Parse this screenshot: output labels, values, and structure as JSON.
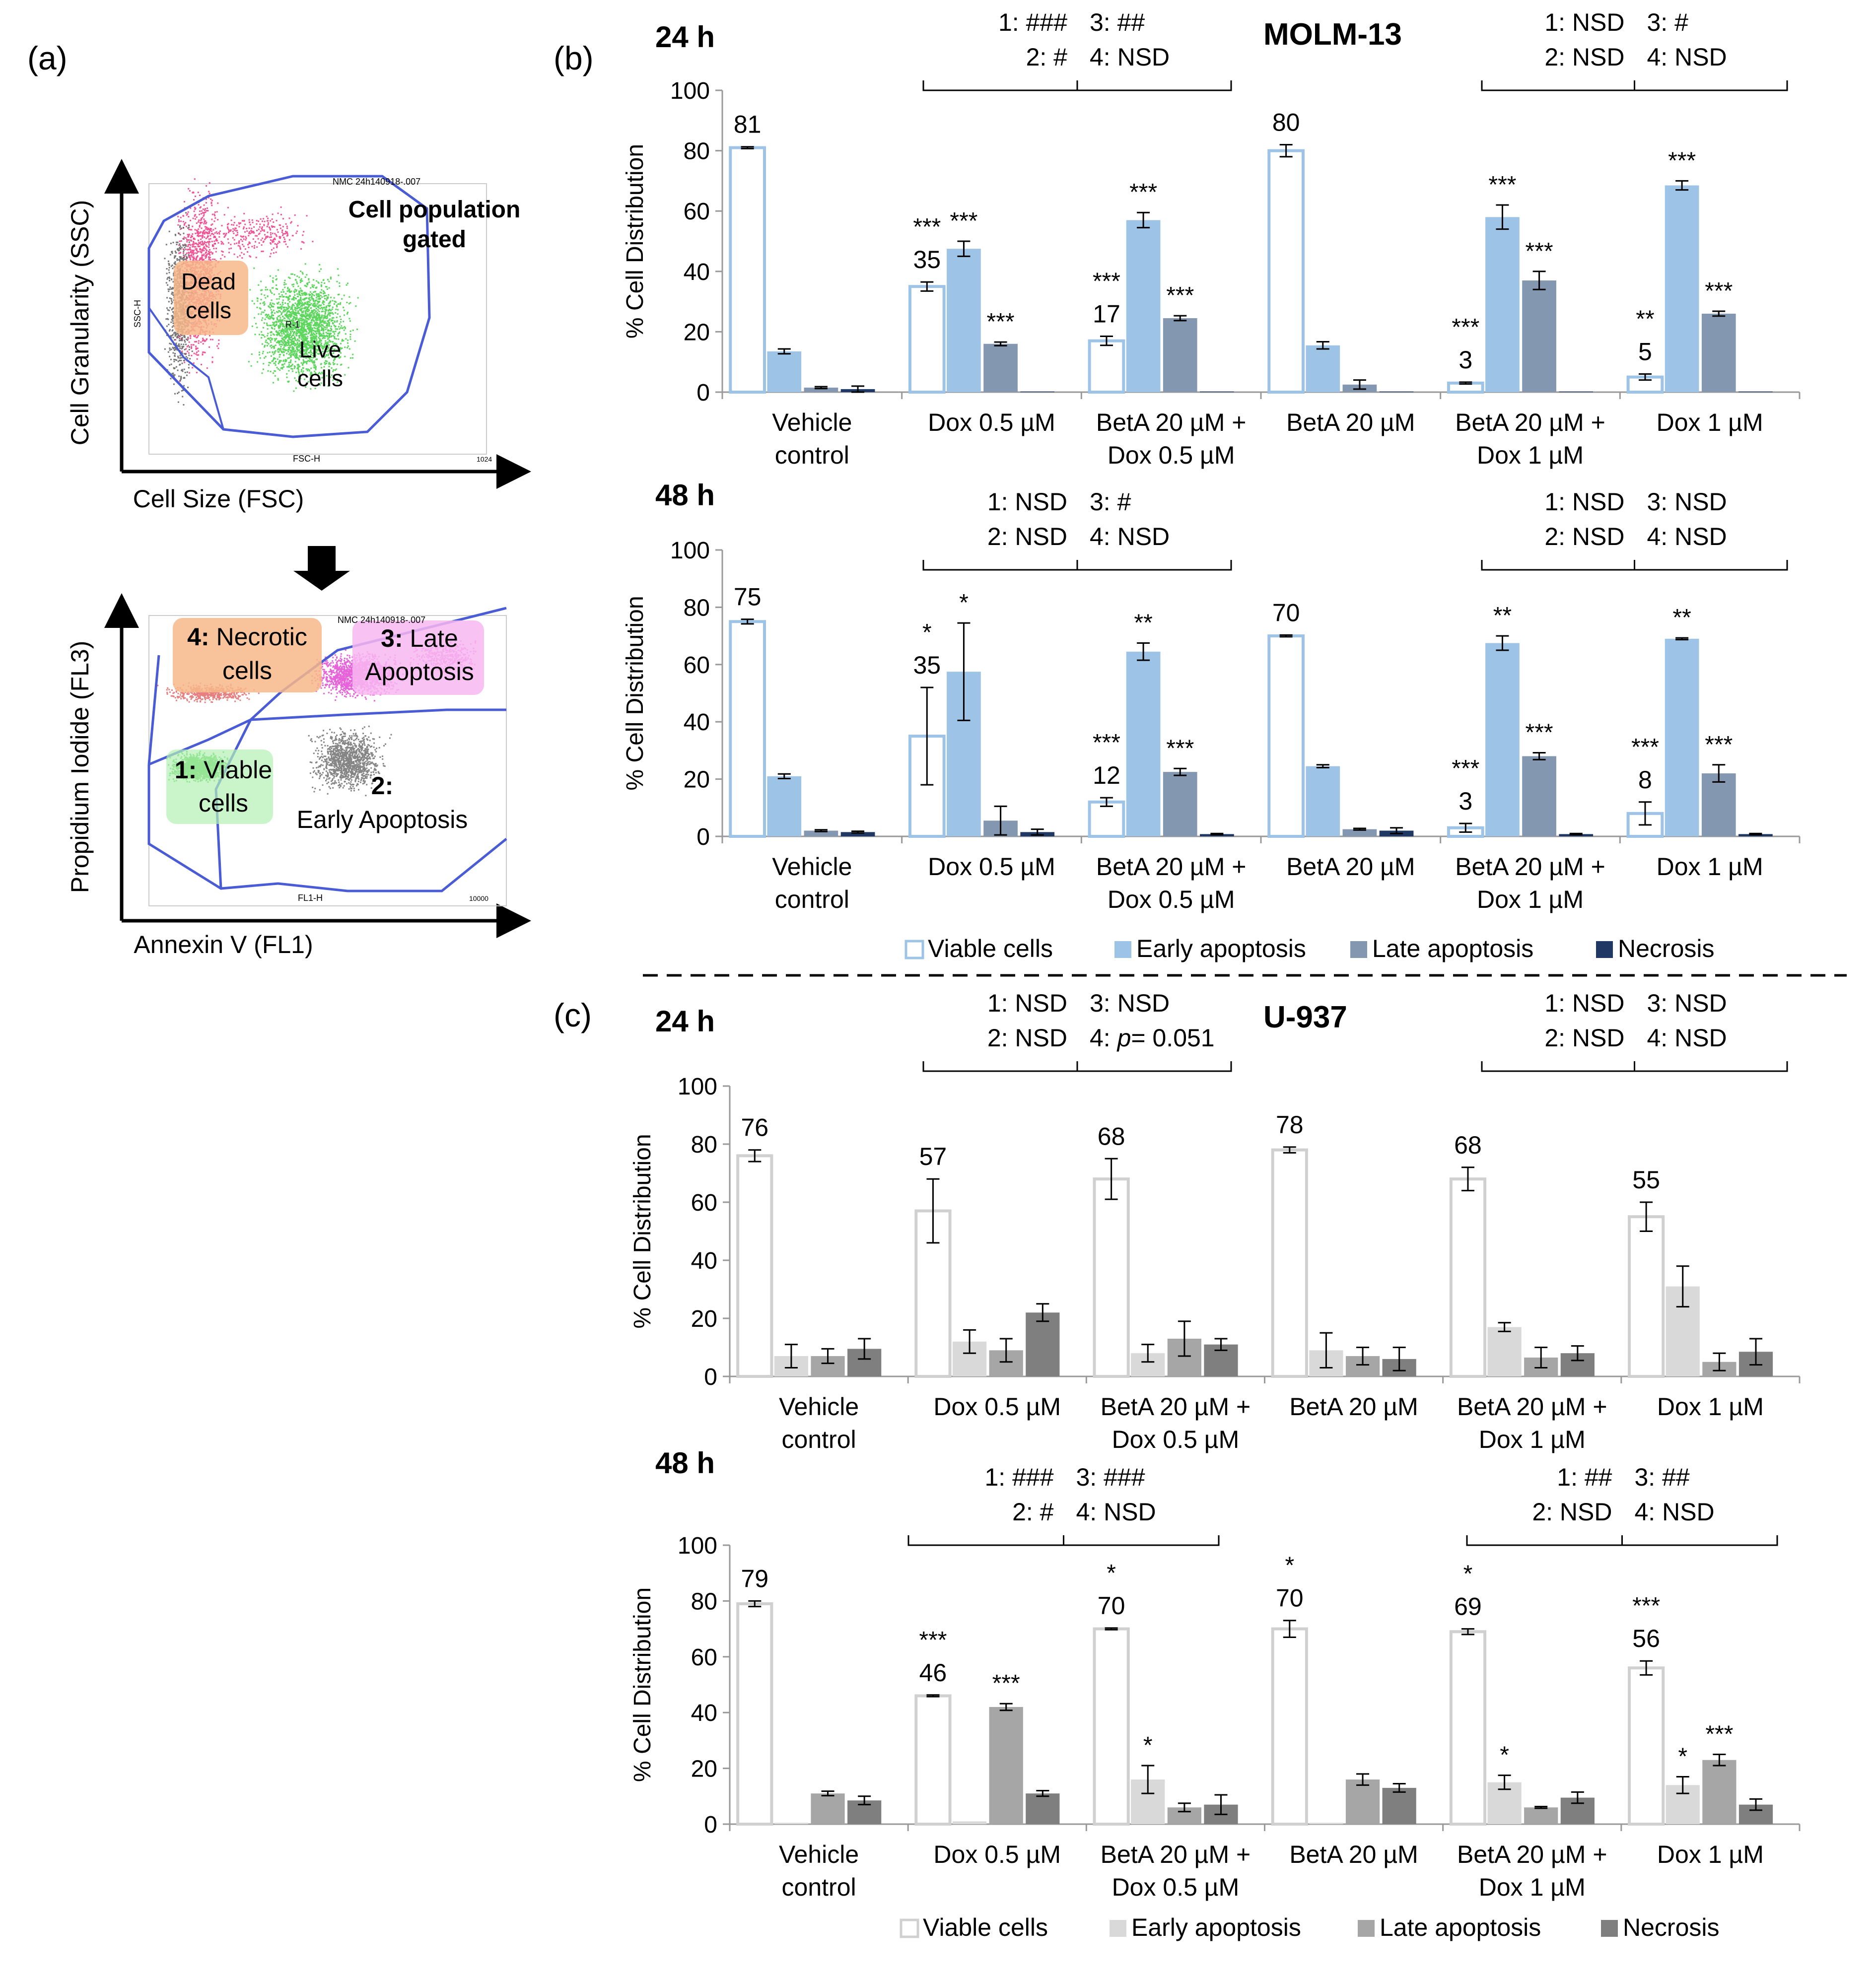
{
  "panel_a": {
    "label": "(a)",
    "scatter1": {
      "ylabel": "Cell Granularity (SSC)",
      "xlabel": "Cell Size (FSC)",
      "file": "NMC 24h140918-.007",
      "gated_label": "Cell population gated",
      "dead_label": "Dead cells",
      "live_label": "Live cells",
      "gate_name": "R-1",
      "inner_xaxis": "FSC-H",
      "inner_yaxis": "SSC-H",
      "xmax_tick": "1024"
    },
    "scatter2": {
      "ylabel": "Propidium Iodide (FL3)",
      "xlabel": "Annexin V (FL1)",
      "file": "NMC 24h140918-.007",
      "q4": "4: Necrotic cells",
      "q3": "3: Late Apoptosis",
      "q1": "1: Viable cells",
      "q2": "2: Early Apoptosis",
      "inner_xaxis": "FL1-H",
      "xmax_tick": "10000"
    }
  },
  "labels": {
    "b": "(b)",
    "c": "(c)",
    "molm": "MOLM-13",
    "u937": "U-937"
  },
  "colors": {
    "molm": [
      "#ffffff",
      "#9dc3e6",
      "#8497b0",
      "#203864"
    ],
    "molm_viable_border": "#9dc3e6",
    "u937": [
      "#ffffff",
      "#d9d9d9",
      "#a6a6a6",
      "#7f7f7f"
    ],
    "u937_viable_border": "#d0d0d0"
  },
  "legend_molm": [
    "Viable cells",
    "Early apoptosis",
    "Late apoptosis",
    "Necrosis"
  ],
  "legend_u937": [
    "Viable cells",
    "Early apoptosis",
    "Late apoptosis",
    "Necrosis"
  ],
  "chart_data": [
    {
      "type": "bar",
      "id": "molm24",
      "time": "24 h",
      "ylabel": "% Cell Distribution",
      "ylim": [
        0,
        100
      ],
      "yticks": [
        0,
        20,
        40,
        60,
        80,
        100
      ],
      "categories": [
        [
          "Vehicle",
          "control"
        ],
        [
          "Dox 0.5 µM"
        ],
        [
          "BetA 20 µM +",
          "Dox 0.5 µM"
        ],
        [
          "BetA 20 µM"
        ],
        [
          "BetA 20 µM +",
          "Dox 1 µM"
        ],
        [
          "Dox 1 µM"
        ]
      ],
      "series": [
        {
          "name": "Viable cells",
          "values": [
            81,
            35,
            17,
            80,
            3,
            5
          ],
          "errors": [
            0.3,
            1.5,
            1.5,
            2,
            0.3,
            1
          ]
        },
        {
          "name": "Early apoptosis",
          "values": [
            13.5,
            47.5,
            57,
            15.5,
            58,
            68.5
          ],
          "errors": [
            0.8,
            2.5,
            2.5,
            1.2,
            4,
            1.5
          ]
        },
        {
          "name": "Late apoptosis",
          "values": [
            1.5,
            16,
            24.5,
            2.5,
            37,
            26
          ],
          "errors": [
            0.3,
            0.6,
            0.8,
            1.5,
            3,
            0.8
          ]
        },
        {
          "name": "Necrosis",
          "values": [
            1,
            0.2,
            0.2,
            0.2,
            0.2,
            0.2
          ],
          "errors": [
            1,
            0,
            0,
            0,
            0,
            0
          ]
        }
      ],
      "value_labels": [
        "81",
        "35",
        "17",
        "80",
        "3",
        "5"
      ],
      "significance": {
        "viable": [
          "",
          "***",
          "***",
          "",
          "***",
          "**"
        ],
        "early": [
          "",
          "***",
          "***",
          "",
          "***",
          "***"
        ],
        "late": [
          "",
          "***",
          "***",
          "",
          "***",
          "***"
        ]
      },
      "brackets": [
        {
          "lines": [
            [
              "1: ###",
              "3: ##"
            ],
            [
              "2: #",
              "4: NSD"
            ]
          ]
        },
        {
          "lines": [
            [
              "1: NSD",
              "3: #"
            ],
            [
              "2: NSD",
              "4: NSD"
            ]
          ]
        }
      ]
    },
    {
      "type": "bar",
      "id": "molm48",
      "time": "48 h",
      "ylabel": "% Cell Distribution",
      "ylim": [
        0,
        100
      ],
      "yticks": [
        0,
        20,
        40,
        60,
        80,
        100
      ],
      "categories": [
        [
          "Vehicle",
          "control"
        ],
        [
          "Dox 0.5 µM"
        ],
        [
          "BetA 20 µM +",
          "Dox 0.5 µM"
        ],
        [
          "BetA 20 µM"
        ],
        [
          "BetA 20 µM +",
          "Dox 1 µM"
        ],
        [
          "Dox 1 µM"
        ]
      ],
      "series": [
        {
          "name": "Viable cells",
          "values": [
            75,
            35,
            12,
            70,
            3,
            8
          ],
          "errors": [
            0.8,
            17,
            1.5,
            0.3,
            1.5,
            4
          ]
        },
        {
          "name": "Early apoptosis",
          "values": [
            21,
            57.5,
            64.5,
            24.5,
            67.5,
            69
          ],
          "errors": [
            0.8,
            17,
            3,
            0.5,
            2.5,
            0.3
          ]
        },
        {
          "name": "Late apoptosis",
          "values": [
            2,
            5.5,
            22.5,
            2.5,
            28,
            22
          ],
          "errors": [
            0.3,
            5,
            1.2,
            0.3,
            1.2,
            3
          ]
        },
        {
          "name": "Necrosis",
          "values": [
            1.5,
            1.5,
            0.8,
            2,
            0.8,
            0.8
          ],
          "errors": [
            0.3,
            1,
            0.2,
            1,
            0.2,
            0.2
          ]
        }
      ],
      "value_labels": [
        "75",
        "35",
        "12",
        "70",
        "3",
        "8"
      ],
      "significance": {
        "viable": [
          "",
          "*",
          "***",
          "",
          "***",
          "***"
        ],
        "early": [
          "",
          "*",
          "**",
          "",
          "**",
          "**"
        ],
        "late": [
          "",
          "",
          "***",
          "",
          "***",
          "***"
        ]
      },
      "brackets": [
        {
          "lines": [
            [
              "1: NSD",
              "3: #"
            ],
            [
              "2: NSD",
              "4: NSD"
            ]
          ]
        },
        {
          "lines": [
            [
              "1: NSD",
              "3: NSD"
            ],
            [
              "2: NSD",
              "4: NSD"
            ]
          ]
        }
      ]
    },
    {
      "type": "bar",
      "id": "u24",
      "time": "24 h",
      "ylabel": "% Cell Distribution",
      "ylim": [
        0,
        100
      ],
      "yticks": [
        0,
        20,
        40,
        60,
        80,
        100
      ],
      "categories": [
        [
          "Vehicle",
          "control"
        ],
        [
          "Dox 0.5 µM"
        ],
        [
          "BetA 20 µM +",
          "Dox 0.5 µM"
        ],
        [
          "BetA 20 µM"
        ],
        [
          "BetA 20 µM +",
          "Dox 1 µM"
        ],
        [
          "Dox 1 µM"
        ]
      ],
      "series": [
        {
          "name": "Viable cells",
          "values": [
            76,
            57,
            68,
            78,
            68,
            55
          ],
          "errors": [
            2,
            11,
            7,
            1,
            4,
            5
          ]
        },
        {
          "name": "Early apoptosis",
          "values": [
            7,
            12,
            8,
            9,
            17,
            31
          ],
          "errors": [
            4,
            4,
            3,
            6,
            1.5,
            7
          ]
        },
        {
          "name": "Late apoptosis",
          "values": [
            7,
            9,
            13,
            7,
            6.5,
            5
          ],
          "errors": [
            2.5,
            4,
            6,
            3,
            3.5,
            3
          ]
        },
        {
          "name": "Necrosis",
          "values": [
            9.5,
            22,
            11,
            6,
            8,
            8.5
          ],
          "errors": [
            3.5,
            3,
            2,
            4,
            2.5,
            4.5
          ]
        }
      ],
      "value_labels": [
        "76",
        "57",
        "68",
        "78",
        "68",
        "55"
      ],
      "significance": {
        "viable": [
          "",
          "",
          "",
          "",
          "",
          ""
        ],
        "early": [
          "",
          "",
          "",
          "",
          "",
          ""
        ],
        "late": [
          "",
          "",
          "",
          "",
          "",
          ""
        ]
      },
      "brackets": [
        {
          "lines": [
            [
              "1: NSD",
              "3: NSD"
            ],
            [
              "2: NSD",
              "4: p= 0.051"
            ]
          ]
        },
        {
          "lines": [
            [
              "1: NSD",
              "3: NSD"
            ],
            [
              "2: NSD",
              "4: NSD"
            ]
          ]
        }
      ]
    },
    {
      "type": "bar",
      "id": "u48",
      "time": "48 h",
      "ylabel": "% Cell Distribution",
      "ylim": [
        0,
        100
      ],
      "yticks": [
        0,
        20,
        40,
        60,
        80,
        100
      ],
      "categories": [
        [
          "Vehicle",
          "control"
        ],
        [
          "Dox 0.5 µM"
        ],
        [
          "BetA 20 µM +",
          "Dox 0.5 µM"
        ],
        [
          "BetA 20 µM"
        ],
        [
          "BetA 20 µM +",
          "Dox 1 µM"
        ],
        [
          "Dox 1 µM"
        ]
      ],
      "series": [
        {
          "name": "Viable cells",
          "values": [
            79,
            46,
            70,
            70,
            69,
            56
          ],
          "errors": [
            1,
            0.3,
            0.3,
            3,
            1,
            2.5
          ]
        },
        {
          "name": "Early apoptosis",
          "values": [
            0.5,
            1,
            16,
            0.5,
            15,
            14
          ],
          "errors": [
            0,
            0,
            5,
            0,
            2.5,
            3
          ]
        },
        {
          "name": "Late apoptosis",
          "values": [
            11,
            42,
            6,
            16,
            6,
            23
          ],
          "errors": [
            0.8,
            1.2,
            1.5,
            2,
            0.3,
            2
          ]
        },
        {
          "name": "Necrosis",
          "values": [
            8.5,
            11,
            7,
            13,
            9.5,
            7
          ],
          "errors": [
            1.5,
            1,
            3.5,
            1.5,
            2,
            2
          ]
        }
      ],
      "value_labels": [
        "79",
        "46",
        "70",
        "70",
        "69",
        "56"
      ],
      "significance": {
        "viable": [
          "",
          "***",
          "*",
          "*",
          "*",
          "***"
        ],
        "early": [
          "",
          "",
          "*",
          "",
          "*",
          "*"
        ],
        "late": [
          "",
          "***",
          "",
          "",
          "",
          "***"
        ]
      },
      "brackets": [
        {
          "lines": [
            [
              "1: ###",
              "3: ###"
            ],
            [
              "2: #",
              "4: NSD"
            ]
          ]
        },
        {
          "lines": [
            [
              "1: ##",
              "3: ##"
            ],
            [
              "2: NSD",
              "4: NSD"
            ]
          ]
        }
      ]
    }
  ]
}
